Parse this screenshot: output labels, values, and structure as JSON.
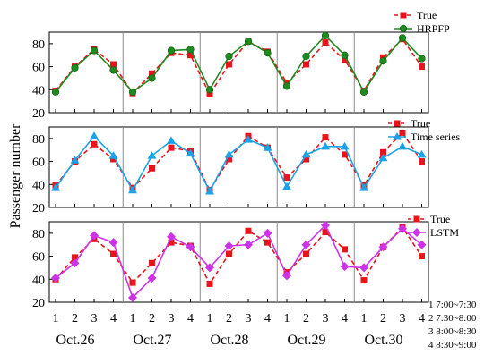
{
  "figure": {
    "ylabel": "Passenger number",
    "x_tick_labels": [
      "1",
      "2",
      "3",
      "4"
    ],
    "days": [
      "Oct.26",
      "Oct.27",
      "Oct.28",
      "Oct.29",
      "Oct.30"
    ],
    "time_notes": [
      "1 7:00~7:30",
      "2 7:30~8:00",
      "3 8:00~8:30",
      "4 8:30~9:00"
    ]
  },
  "chart_data": [
    {
      "type": "line",
      "panel": "top",
      "x": [
        1,
        2,
        3,
        4,
        5,
        6,
        7,
        8,
        9,
        10,
        11,
        12,
        13,
        14,
        15,
        16,
        17,
        18,
        19,
        20
      ],
      "ylim": [
        20,
        90
      ],
      "yticks": [
        20,
        40,
        60,
        80
      ],
      "grid": false,
      "legend_position": "top-right",
      "series": [
        {
          "name": "True",
          "color": "#e8141c",
          "style": "dashed",
          "marker": "square",
          "values": [
            39,
            60,
            75,
            62,
            37,
            54,
            72,
            70,
            36,
            62,
            82,
            73,
            46,
            62,
            81,
            66,
            39,
            68,
            84,
            60
          ]
        },
        {
          "name": "HRPFP",
          "color": "#1f8a1f",
          "style": "solid",
          "marker": "circle",
          "values": [
            38,
            59,
            74,
            57,
            38,
            50,
            74,
            75,
            40,
            69,
            82,
            72,
            43,
            69,
            87,
            70,
            38,
            65,
            85,
            67
          ]
        }
      ]
    },
    {
      "type": "line",
      "panel": "middle",
      "x": [
        1,
        2,
        3,
        4,
        5,
        6,
        7,
        8,
        9,
        10,
        11,
        12,
        13,
        14,
        15,
        16,
        17,
        18,
        19,
        20
      ],
      "ylim": [
        20,
        90
      ],
      "yticks": [
        20,
        40,
        60,
        80
      ],
      "grid": false,
      "legend_position": "top-right",
      "series": [
        {
          "name": "True",
          "color": "#e8141c",
          "style": "dashed",
          "marker": "square",
          "values": [
            39,
            60,
            75,
            62,
            37,
            54,
            72,
            69,
            35,
            62,
            82,
            72,
            46,
            62,
            81,
            66,
            39,
            68,
            85,
            60
          ]
        },
        {
          "name": "Time series",
          "color": "#1aa3e8",
          "style": "solid",
          "marker": "triangle",
          "values": [
            37,
            61,
            82,
            65,
            35,
            65,
            78,
            67,
            34,
            66,
            79,
            72,
            38,
            66,
            73,
            73,
            37,
            63,
            73,
            66
          ]
        }
      ]
    },
    {
      "type": "line",
      "panel": "bottom",
      "x": [
        1,
        2,
        3,
        4,
        5,
        6,
        7,
        8,
        9,
        10,
        11,
        12,
        13,
        14,
        15,
        16,
        17,
        18,
        19,
        20
      ],
      "ylim": [
        20,
        90
      ],
      "yticks": [
        20,
        40,
        60,
        80
      ],
      "grid": false,
      "legend_position": "top-right",
      "series": [
        {
          "name": "True",
          "color": "#e8141c",
          "style": "dashed",
          "marker": "square",
          "values": [
            40,
            59,
            75,
            62,
            37,
            54,
            72,
            69,
            36,
            62,
            82,
            72,
            46,
            62,
            81,
            66,
            39,
            68,
            85,
            60
          ]
        },
        {
          "name": "LSTM",
          "color": "#cc33e6",
          "style": "solid",
          "marker": "diamond",
          "values": [
            41,
            54,
            78,
            72,
            24,
            41,
            77,
            68,
            50,
            69,
            70,
            80,
            43,
            70,
            87,
            51,
            50,
            68,
            84,
            70
          ]
        }
      ]
    }
  ]
}
